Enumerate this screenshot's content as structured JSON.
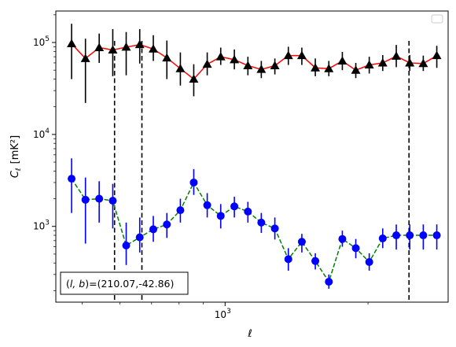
{
  "chart_data": {
    "type": "scatter",
    "xscale": "log",
    "yscale": "log",
    "xlim": [
      440,
      2950
    ],
    "ylim": [
      150,
      220000
    ],
    "xlabel": "ℓ",
    "ylabel": "C",
    "ylabel_sub": "ℓ",
    "ylabel_unit": "[mK²]",
    "x_major_ticks": [
      {
        "value": 1000,
        "base": "10",
        "exp": "3"
      }
    ],
    "y_major_ticks": [
      {
        "value": 1000,
        "base": "10",
        "exp": "3"
      },
      {
        "value": 10000,
        "base": "10",
        "exp": "4"
      },
      {
        "value": 100000,
        "base": "10",
        "exp": "5"
      }
    ],
    "legend": {
      "placement": "top-right",
      "entries": []
    },
    "vlines": [
      585,
      668,
      2440
    ],
    "annotation": {
      "text": "(l, b)=(210.07,-42.86)",
      "italic_part": "l, b",
      "prefix": "(",
      "middle": ")=(210.07,-42.86)"
    },
    "x": [
      475,
      500,
      525,
      552,
      580,
      609,
      640,
      672,
      706,
      742,
      780,
      820,
      861,
      905,
      952,
      1000,
      1051,
      1104,
      1160,
      1219,
      1281,
      1346,
      1414,
      1486,
      1562,
      1641,
      1724,
      1812,
      1904,
      2000,
      2102,
      2209,
      2321,
      2439,
      2563,
      2693,
      2830
    ],
    "series": [
      {
        "color": "#ff0000",
        "line_style": "solid",
        "marker": "triangle",
        "marker_color": "#000000",
        "errorbar_color": "#000000",
        "x": [
          475,
          508,
          543,
          580,
          619,
          661,
          706,
          754,
          805,
          859,
          917,
          979,
          1046,
          1117,
          1192,
          1273,
          1359,
          1451,
          1549,
          1654,
          1766,
          1885,
          2012,
          2148,
          2294,
          2449,
          2615,
          2792
        ],
        "y": [
          97000,
          67000,
          88000,
          83000,
          89000,
          95000,
          85000,
          68000,
          52000,
          40000,
          58000,
          70000,
          65000,
          56000,
          51000,
          56000,
          72000,
          72000,
          53000,
          52000,
          63000,
          50000,
          57000,
          60000,
          71000,
          60000,
          59000,
          72000
        ],
        "y_low": [
          40000,
          22000,
          60000,
          43000,
          44000,
          59000,
          63000,
          40000,
          34000,
          26000,
          44000,
          57000,
          51000,
          44000,
          41000,
          45000,
          57000,
          57000,
          43000,
          43000,
          50000,
          41000,
          46000,
          49000,
          54000,
          49000,
          49000,
          53000
        ],
        "y_high": [
          160000,
          110000,
          125000,
          140000,
          130000,
          140000,
          120000,
          105000,
          78000,
          58000,
          78000,
          88000,
          84000,
          70000,
          63000,
          67000,
          90000,
          88000,
          67000,
          63000,
          79000,
          60000,
          70000,
          73000,
          94000,
          73000,
          72000,
          92000
        ]
      },
      {
        "color": "#008000",
        "line_style": "dashed",
        "marker": "circle",
        "marker_color": "#0000ff",
        "errorbar_color": "#0000ff",
        "x": [
          475,
          508,
          543,
          580,
          619,
          661,
          706,
          754,
          805,
          859,
          917,
          979,
          1046,
          1117,
          1192,
          1273,
          1359,
          1451,
          1549,
          1654,
          1766,
          1885,
          2012,
          2148,
          2294,
          2449,
          2615,
          2792
        ],
        "y": [
          3300,
          1950,
          2000,
          1900,
          620,
          760,
          930,
          1050,
          1500,
          3000,
          1700,
          1300,
          1650,
          1450,
          1100,
          950,
          440,
          680,
          420,
          250,
          730,
          580,
          410,
          740,
          800,
          800,
          800,
          800
        ],
        "y_low": [
          1400,
          650,
          1100,
          950,
          380,
          520,
          680,
          750,
          1100,
          2200,
          1250,
          950,
          1250,
          1100,
          850,
          720,
          330,
          520,
          340,
          210,
          600,
          450,
          330,
          580,
          560,
          560,
          560,
          560
        ],
        "y_high": [
          5500,
          3400,
          3100,
          2900,
          1100,
          1250,
          1300,
          1400,
          2000,
          4200,
          2300,
          1750,
          2100,
          1850,
          1400,
          1250,
          580,
          830,
          510,
          300,
          900,
          730,
          510,
          950,
          1050,
          1050,
          1050,
          1050
        ]
      }
    ]
  }
}
